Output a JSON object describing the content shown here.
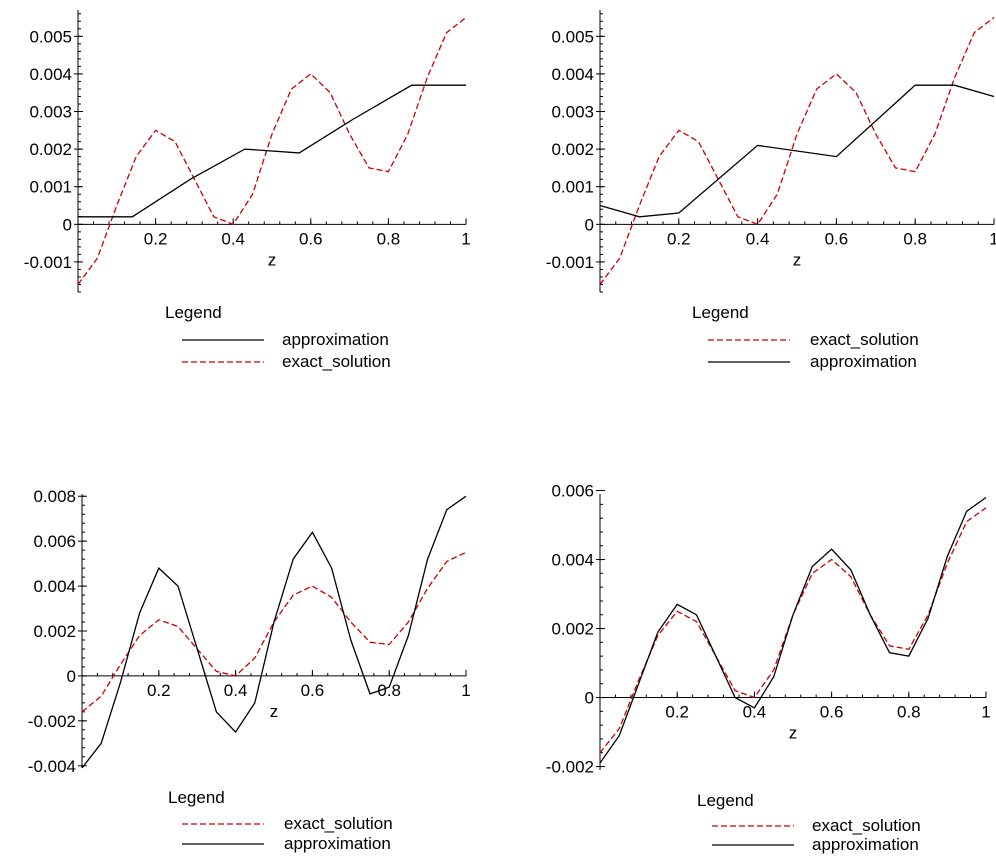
{
  "colors": {
    "exact_solution": "#cc0000",
    "approximation": "#000000",
    "axis": "#000000"
  },
  "chart_data": [
    {
      "type": "line",
      "xlabel": "z",
      "xlim": [
        0,
        1
      ],
      "ylim": [
        -0.0018,
        0.0057
      ],
      "x_ticks": [
        0.2,
        0.4,
        0.6,
        0.8,
        1
      ],
      "x_tick_labels": [
        "0.2",
        "0.4",
        "0.6",
        "0.8",
        "1"
      ],
      "y_ticks": [
        -0.001,
        0,
        0.001,
        0.002,
        0.003,
        0.004,
        0.005
      ],
      "y_tick_labels": [
        "-0.001",
        "0",
        "0.001",
        "0.002",
        "0.003",
        "0.004",
        "0.005"
      ],
      "legend_title": "Legend",
      "legend_position": "bottom",
      "legend_order": [
        "approximation",
        "exact_solution"
      ],
      "series": [
        {
          "name": "exact_solution",
          "style": "dashed",
          "color": "#cc0000",
          "x": [
            0,
            0.05,
            0.1,
            0.15,
            0.2,
            0.25,
            0.3,
            0.35,
            0.4,
            0.45,
            0.5,
            0.55,
            0.6,
            0.65,
            0.7,
            0.75,
            0.8,
            0.85,
            0.9,
            0.95,
            1
          ],
          "y": [
            -0.0016,
            -0.0009,
            0.0005,
            0.0018,
            0.0025,
            0.0022,
            0.0012,
            0.0002,
            0.0,
            0.0008,
            0.0024,
            0.0036,
            0.004,
            0.0035,
            0.0024,
            0.0015,
            0.0014,
            0.0024,
            0.0039,
            0.0051,
            0.0055
          ]
        },
        {
          "name": "approximation",
          "style": "solid",
          "color": "#000000",
          "x": [
            0,
            0.14,
            0.29,
            0.43,
            0.57,
            0.71,
            0.86,
            1
          ],
          "y": [
            0.0002,
            0.0002,
            0.0012,
            0.002,
            0.0019,
            0.0028,
            0.0037,
            0.0037
          ]
        }
      ]
    },
    {
      "type": "line",
      "xlabel": "z",
      "xlim": [
        0,
        1
      ],
      "ylim": [
        -0.0018,
        0.0057
      ],
      "x_ticks": [
        0.2,
        0.4,
        0.6,
        0.8,
        1
      ],
      "x_tick_labels": [
        "0.2",
        "0.4",
        "0.6",
        "0.8",
        "1"
      ],
      "y_ticks": [
        -0.001,
        0,
        0.001,
        0.002,
        0.003,
        0.004,
        0.005
      ],
      "y_tick_labels": [
        "-0.001",
        "0",
        "0.001",
        "0.002",
        "0.003",
        "0.004",
        "0.005"
      ],
      "legend_title": "Legend",
      "legend_position": "bottom",
      "legend_order": [
        "exact_solution",
        "approximation"
      ],
      "series": [
        {
          "name": "exact_solution",
          "style": "dashed",
          "color": "#cc0000",
          "x": [
            0,
            0.05,
            0.1,
            0.15,
            0.2,
            0.25,
            0.3,
            0.35,
            0.4,
            0.45,
            0.5,
            0.55,
            0.6,
            0.65,
            0.7,
            0.75,
            0.8,
            0.85,
            0.9,
            0.95,
            1
          ],
          "y": [
            -0.0016,
            -0.0009,
            0.0005,
            0.0018,
            0.0025,
            0.0022,
            0.0012,
            0.0002,
            0.0,
            0.0008,
            0.0024,
            0.0036,
            0.004,
            0.0035,
            0.0024,
            0.0015,
            0.0014,
            0.0024,
            0.0039,
            0.0051,
            0.0055
          ]
        },
        {
          "name": "approximation",
          "style": "solid",
          "color": "#000000",
          "x": [
            0,
            0.1,
            0.2,
            0.4,
            0.6,
            0.8,
            0.9,
            1
          ],
          "y": [
            0.0005,
            0.0002,
            0.0003,
            0.0021,
            0.0018,
            0.0037,
            0.0037,
            0.0034
          ]
        }
      ]
    },
    {
      "type": "line",
      "xlabel": "z",
      "xlim": [
        0,
        1
      ],
      "ylim": [
        -0.0041,
        0.0081
      ],
      "x_ticks": [
        0.2,
        0.4,
        0.6,
        0.8,
        1
      ],
      "x_tick_labels": [
        "0.2",
        "0.4",
        "0.6",
        "0.8",
        "1"
      ],
      "y_ticks": [
        -0.004,
        -0.002,
        0,
        0.002,
        0.004,
        0.006,
        0.008
      ],
      "y_tick_labels": [
        "-0.004",
        "-0.002",
        "0",
        "0.002",
        "0.004",
        "0.006",
        "0.008"
      ],
      "legend_title": "Legend",
      "legend_position": "bottom",
      "legend_order": [
        "exact_solution",
        "approximation"
      ],
      "series": [
        {
          "name": "exact_solution",
          "style": "dashed",
          "color": "#cc0000",
          "x": [
            0,
            0.05,
            0.1,
            0.15,
            0.2,
            0.25,
            0.3,
            0.35,
            0.4,
            0.45,
            0.5,
            0.55,
            0.6,
            0.65,
            0.7,
            0.75,
            0.8,
            0.85,
            0.9,
            0.95,
            1
          ],
          "y": [
            -0.0016,
            -0.0009,
            0.0005,
            0.0018,
            0.0025,
            0.0022,
            0.0012,
            0.0002,
            0.0,
            0.0008,
            0.0024,
            0.0036,
            0.004,
            0.0035,
            0.0024,
            0.0015,
            0.0014,
            0.0024,
            0.0039,
            0.0051,
            0.0055
          ]
        },
        {
          "name": "approximation",
          "style": "solid",
          "color": "#000000",
          "x": [
            0,
            0.05,
            0.1,
            0.15,
            0.2,
            0.25,
            0.3,
            0.35,
            0.4,
            0.45,
            0.5,
            0.55,
            0.6,
            0.65,
            0.7,
            0.75,
            0.8,
            0.85,
            0.9,
            0.95,
            1
          ],
          "y": [
            -0.0041,
            -0.003,
            -0.0003,
            0.0028,
            0.0048,
            0.004,
            0.0012,
            -0.0016,
            -0.0025,
            -0.0012,
            0.0024,
            0.0052,
            0.0064,
            0.0048,
            0.0016,
            -0.0008,
            -0.0005,
            0.0018,
            0.0052,
            0.0074,
            0.008
          ]
        }
      ]
    },
    {
      "type": "line",
      "xlabel": "z",
      "xlim": [
        0,
        1
      ],
      "ylim": [
        -0.0021,
        0.0059
      ],
      "x_ticks": [
        0.2,
        0.4,
        0.6,
        0.8,
        1
      ],
      "x_tick_labels": [
        "0.2",
        "0.4",
        "0.6",
        "0.8",
        "1"
      ],
      "y_ticks": [
        -0.002,
        0,
        0.002,
        0.004,
        0.006
      ],
      "y_tick_labels": [
        "-0.002",
        "0",
        "0.002",
        "0.004",
        "0.006"
      ],
      "legend_title": "Legend",
      "legend_position": "bottom",
      "legend_order": [
        "exact_solution",
        "approximation"
      ],
      "series": [
        {
          "name": "exact_solution",
          "style": "dashed",
          "color": "#cc0000",
          "x": [
            0,
            0.05,
            0.1,
            0.15,
            0.2,
            0.25,
            0.3,
            0.35,
            0.4,
            0.45,
            0.5,
            0.55,
            0.6,
            0.65,
            0.7,
            0.75,
            0.8,
            0.85,
            0.9,
            0.95,
            1
          ],
          "y": [
            -0.0016,
            -0.0009,
            0.0005,
            0.0018,
            0.0025,
            0.0022,
            0.0012,
            0.0002,
            0.0,
            0.0008,
            0.0024,
            0.0036,
            0.004,
            0.0035,
            0.0024,
            0.0015,
            0.0014,
            0.0024,
            0.0039,
            0.0051,
            0.0055
          ]
        },
        {
          "name": "approximation",
          "style": "solid",
          "color": "#000000",
          "x": [
            0,
            0.05,
            0.1,
            0.15,
            0.2,
            0.25,
            0.3,
            0.35,
            0.4,
            0.45,
            0.5,
            0.55,
            0.6,
            0.65,
            0.7,
            0.75,
            0.8,
            0.85,
            0.9,
            0.95,
            1
          ],
          "y": [
            -0.0019,
            -0.0011,
            0.0004,
            0.0019,
            0.0027,
            0.0024,
            0.0012,
            0.0,
            -0.0003,
            0.0006,
            0.0024,
            0.0038,
            0.0043,
            0.0037,
            0.0024,
            0.0013,
            0.0012,
            0.0023,
            0.0041,
            0.0054,
            0.0058
          ]
        }
      ]
    }
  ]
}
